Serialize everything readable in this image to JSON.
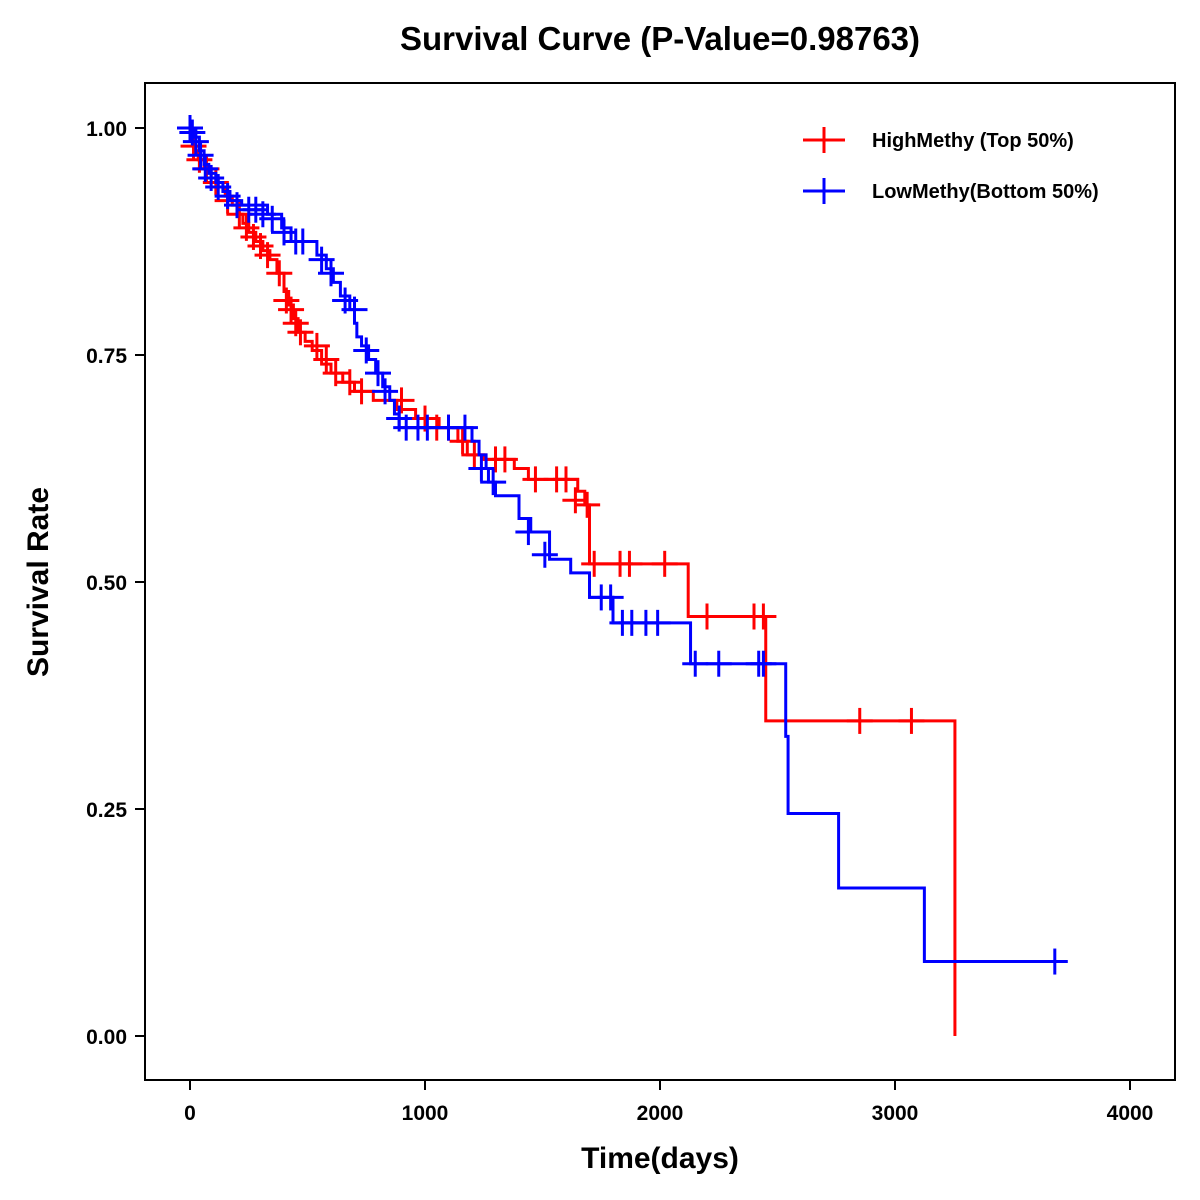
{
  "chart_data": {
    "type": "line",
    "subtype": "kaplan-meier-step",
    "title": "Survival Curve (P-Value=0.98763)",
    "xlabel": "Time(days)",
    "ylabel": "Survival Rate",
    "xlim": [
      -200,
      4200
    ],
    "ylim": [
      -0.05,
      1.05
    ],
    "x_ticks": [
      0,
      1000,
      2000,
      3000,
      4000
    ],
    "x_tick_labels": [
      "0",
      "1000",
      "2000",
      "3000",
      "4000"
    ],
    "y_ticks": [
      0,
      0.25,
      0.5,
      0.75,
      1.0
    ],
    "y_tick_labels": [
      "0.00",
      "0.25",
      "0.50",
      "0.75",
      "1.00"
    ],
    "grid": false,
    "legend_position": "top-right",
    "series": [
      {
        "name": "HighMethy (Top 50%)",
        "color": "#ff0000",
        "steps": [
          [
            0,
            1.0
          ],
          [
            10,
            0.985
          ],
          [
            20,
            0.975
          ],
          [
            35,
            0.965
          ],
          [
            60,
            0.955
          ],
          [
            90,
            0.945
          ],
          [
            120,
            0.935
          ],
          [
            150,
            0.925
          ],
          [
            180,
            0.915
          ],
          [
            200,
            0.905
          ],
          [
            225,
            0.895
          ],
          [
            250,
            0.885
          ],
          [
            280,
            0.875
          ],
          [
            310,
            0.865
          ],
          [
            340,
            0.855
          ],
          [
            370,
            0.84
          ],
          [
            400,
            0.82
          ],
          [
            420,
            0.805
          ],
          [
            440,
            0.79
          ],
          [
            460,
            0.775
          ],
          [
            490,
            0.765
          ],
          [
            520,
            0.755
          ],
          [
            560,
            0.74
          ],
          [
            600,
            0.73
          ],
          [
            650,
            0.72
          ],
          [
            700,
            0.71
          ],
          [
            780,
            0.7
          ],
          [
            880,
            0.69
          ],
          [
            960,
            0.68
          ],
          [
            1060,
            0.67
          ],
          [
            1140,
            0.655
          ],
          [
            1180,
            0.64
          ],
          [
            1250,
            0.635
          ],
          [
            1380,
            0.625
          ],
          [
            1440,
            0.613
          ],
          [
            1650,
            0.6
          ],
          [
            1680,
            0.585
          ],
          [
            1700,
            0.52
          ],
          [
            2120,
            0.462
          ],
          [
            2450,
            0.347
          ],
          [
            3255,
            0.0
          ]
        ],
        "censored": [
          [
            15,
            0.98
          ],
          [
            40,
            0.965
          ],
          [
            70,
            0.955
          ],
          [
            110,
            0.94
          ],
          [
            160,
            0.92
          ],
          [
            210,
            0.905
          ],
          [
            240,
            0.89
          ],
          [
            270,
            0.88
          ],
          [
            300,
            0.87
          ],
          [
            330,
            0.86
          ],
          [
            380,
            0.84
          ],
          [
            410,
            0.81
          ],
          [
            430,
            0.8
          ],
          [
            450,
            0.785
          ],
          [
            470,
            0.775
          ],
          [
            540,
            0.76
          ],
          [
            580,
            0.745
          ],
          [
            620,
            0.73
          ],
          [
            680,
            0.72
          ],
          [
            730,
            0.71
          ],
          [
            900,
            0.7
          ],
          [
            1000,
            0.68
          ],
          [
            1050,
            0.67
          ],
          [
            1100,
            0.67
          ],
          [
            1160,
            0.655
          ],
          [
            1210,
            0.64
          ],
          [
            1300,
            0.635
          ],
          [
            1340,
            0.635
          ],
          [
            1470,
            0.613
          ],
          [
            1560,
            0.613
          ],
          [
            1600,
            0.613
          ],
          [
            1640,
            0.59
          ],
          [
            1690,
            0.585
          ],
          [
            1720,
            0.52
          ],
          [
            1830,
            0.52
          ],
          [
            1870,
            0.52
          ],
          [
            2020,
            0.52
          ],
          [
            2200,
            0.462
          ],
          [
            2400,
            0.462
          ],
          [
            2440,
            0.462
          ],
          [
            2850,
            0.347
          ],
          [
            3070,
            0.347
          ]
        ]
      },
      {
        "name": "LowMethy(Bottom 50%)",
        "color": "#0000ff",
        "steps": [
          [
            0,
            1.0
          ],
          [
            20,
            0.99
          ],
          [
            40,
            0.975
          ],
          [
            60,
            0.96
          ],
          [
            80,
            0.95
          ],
          [
            110,
            0.94
          ],
          [
            140,
            0.93
          ],
          [
            170,
            0.92
          ],
          [
            220,
            0.915
          ],
          [
            330,
            0.905
          ],
          [
            390,
            0.89
          ],
          [
            430,
            0.875
          ],
          [
            540,
            0.86
          ],
          [
            580,
            0.845
          ],
          [
            610,
            0.83
          ],
          [
            640,
            0.815
          ],
          [
            680,
            0.8
          ],
          [
            700,
            0.785
          ],
          [
            710,
            0.77
          ],
          [
            730,
            0.76
          ],
          [
            760,
            0.745
          ],
          [
            790,
            0.73
          ],
          [
            820,
            0.715
          ],
          [
            850,
            0.7
          ],
          [
            870,
            0.685
          ],
          [
            890,
            0.67
          ],
          [
            1200,
            0.655
          ],
          [
            1230,
            0.64
          ],
          [
            1260,
            0.625
          ],
          [
            1270,
            0.61
          ],
          [
            1300,
            0.595
          ],
          [
            1400,
            0.57
          ],
          [
            1450,
            0.555
          ],
          [
            1530,
            0.525
          ],
          [
            1620,
            0.51
          ],
          [
            1700,
            0.483
          ],
          [
            1800,
            0.455
          ],
          [
            2130,
            0.41
          ],
          [
            2535,
            0.33
          ],
          [
            2545,
            0.245
          ],
          [
            2760,
            0.163
          ],
          [
            3125,
            0.082
          ],
          [
            3680,
            0.082
          ]
        ],
        "censored": [
          [
            0,
            1.0
          ],
          [
            10,
            0.995
          ],
          [
            25,
            0.985
          ],
          [
            45,
            0.97
          ],
          [
            65,
            0.955
          ],
          [
            90,
            0.945
          ],
          [
            120,
            0.935
          ],
          [
            160,
            0.925
          ],
          [
            200,
            0.915
          ],
          [
            250,
            0.91
          ],
          [
            280,
            0.91
          ],
          [
            310,
            0.905
          ],
          [
            350,
            0.9
          ],
          [
            400,
            0.885
          ],
          [
            450,
            0.875
          ],
          [
            480,
            0.875
          ],
          [
            560,
            0.855
          ],
          [
            600,
            0.84
          ],
          [
            660,
            0.81
          ],
          [
            700,
            0.8
          ],
          [
            750,
            0.755
          ],
          [
            800,
            0.73
          ],
          [
            830,
            0.71
          ],
          [
            890,
            0.68
          ],
          [
            920,
            0.67
          ],
          [
            970,
            0.67
          ],
          [
            1010,
            0.67
          ],
          [
            1100,
            0.67
          ],
          [
            1170,
            0.67
          ],
          [
            1240,
            0.625
          ],
          [
            1290,
            0.61
          ],
          [
            1440,
            0.555
          ],
          [
            1510,
            0.53
          ],
          [
            1750,
            0.483
          ],
          [
            1790,
            0.483
          ],
          [
            1840,
            0.455
          ],
          [
            1880,
            0.455
          ],
          [
            1940,
            0.455
          ],
          [
            1990,
            0.455
          ],
          [
            2150,
            0.41
          ],
          [
            2250,
            0.41
          ],
          [
            2420,
            0.41
          ],
          [
            2440,
            0.41
          ],
          [
            3680,
            0.082
          ]
        ]
      }
    ]
  }
}
